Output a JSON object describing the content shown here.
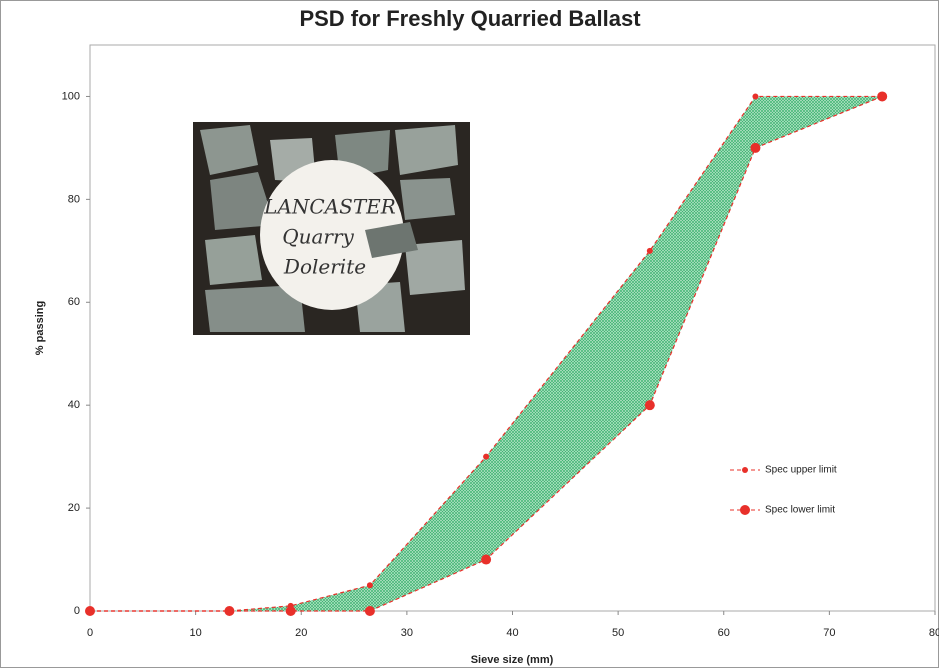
{
  "chart_data": {
    "type": "line",
    "title": "PSD for Freshly Quarried Ballast",
    "xlabel": "Sieve size (mm)",
    "ylabel": "% passing",
    "x": [
      0,
      13.2,
      19,
      26.5,
      37.5,
      53,
      63,
      75
    ],
    "series": [
      {
        "name": "Spec upper limit",
        "color": "#e8302a",
        "values": [
          0,
          0,
          1,
          5,
          30,
          70,
          100,
          100
        ]
      },
      {
        "name": "Spec lower limit",
        "color": "#e8302a",
        "values": [
          0,
          0,
          0,
          0,
          10,
          40,
          90,
          100
        ]
      }
    ],
    "fill_between": true,
    "fill_color": "#3cb371",
    "xlim": [
      0,
      80
    ],
    "xticks": [
      0,
      10,
      20,
      30,
      40,
      50,
      60,
      70,
      80
    ],
    "ylim": [
      0,
      110
    ],
    "yticks": [
      0,
      20,
      40,
      60,
      80,
      100
    ],
    "grid": false,
    "legend": "lower right",
    "photo_text": [
      "LANCASTER",
      "Quarry",
      "Dolerite"
    ]
  }
}
